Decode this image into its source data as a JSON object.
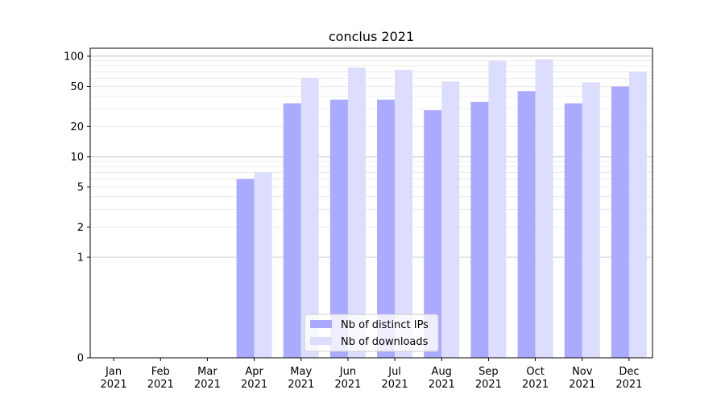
{
  "chart_data": {
    "type": "bar",
    "title": "conclus 2021",
    "xlabel": "",
    "ylabel": "",
    "yscale": "symlog",
    "ylim": [
      0,
      120
    ],
    "yticks": [
      0,
      1,
      2,
      5,
      10,
      20,
      50,
      100
    ],
    "grid": true,
    "legend_position": "bottom-center",
    "categories": [
      "Jan\n2021",
      "Feb\n2021",
      "Mar\n2021",
      "Apr\n2021",
      "May\n2021",
      "Jun\n2021",
      "Jul\n2021",
      "Aug\n2021",
      "Sep\n2021",
      "Oct\n2021",
      "Nov\n2021",
      "Dec\n2021"
    ],
    "series": [
      {
        "name": "Nb of distinct IPs",
        "color": "#aaaaff",
        "values": [
          0,
          0,
          0,
          6,
          34,
          37,
          37,
          29,
          35,
          45,
          34,
          50
        ]
      },
      {
        "name": "Nb of downloads",
        "color": "#ddddff",
        "values": [
          0,
          0,
          0,
          7,
          61,
          77,
          73,
          56,
          90,
          93,
          55,
          70
        ]
      }
    ]
  }
}
